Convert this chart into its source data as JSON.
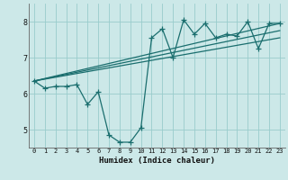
{
  "xlabel": "Humidex (Indice chaleur)",
  "bg_color": "#cce8e8",
  "grid_color": "#99cccc",
  "line_color": "#1a6e6e",
  "marker": "+",
  "markersize": 4,
  "linewidth": 0.9,
  "xlim": [
    -0.5,
    23.5
  ],
  "ylim": [
    4.5,
    8.5
  ],
  "yticks": [
    5,
    6,
    7,
    8
  ],
  "xticks": [
    0,
    1,
    2,
    3,
    4,
    5,
    6,
    7,
    8,
    9,
    10,
    11,
    12,
    13,
    14,
    15,
    16,
    17,
    18,
    19,
    20,
    21,
    22,
    23
  ],
  "main_series": {
    "x": [
      0,
      1,
      2,
      3,
      4,
      5,
      6,
      7,
      8,
      9,
      10,
      11,
      12,
      13,
      14,
      15,
      16,
      17,
      18,
      19,
      20,
      21,
      22,
      23
    ],
    "y": [
      6.35,
      6.15,
      6.2,
      6.2,
      6.25,
      5.7,
      6.05,
      4.85,
      4.65,
      4.65,
      5.05,
      7.55,
      7.8,
      7.0,
      8.05,
      7.65,
      7.95,
      7.55,
      7.65,
      7.6,
      8.0,
      7.25,
      7.95,
      7.95
    ]
  },
  "trend_lines": [
    {
      "x": [
        0,
        23
      ],
      "y": [
        6.35,
        7.95
      ]
    },
    {
      "x": [
        0,
        23
      ],
      "y": [
        6.35,
        7.75
      ]
    },
    {
      "x": [
        0,
        23
      ],
      "y": [
        6.35,
        7.55
      ]
    }
  ]
}
